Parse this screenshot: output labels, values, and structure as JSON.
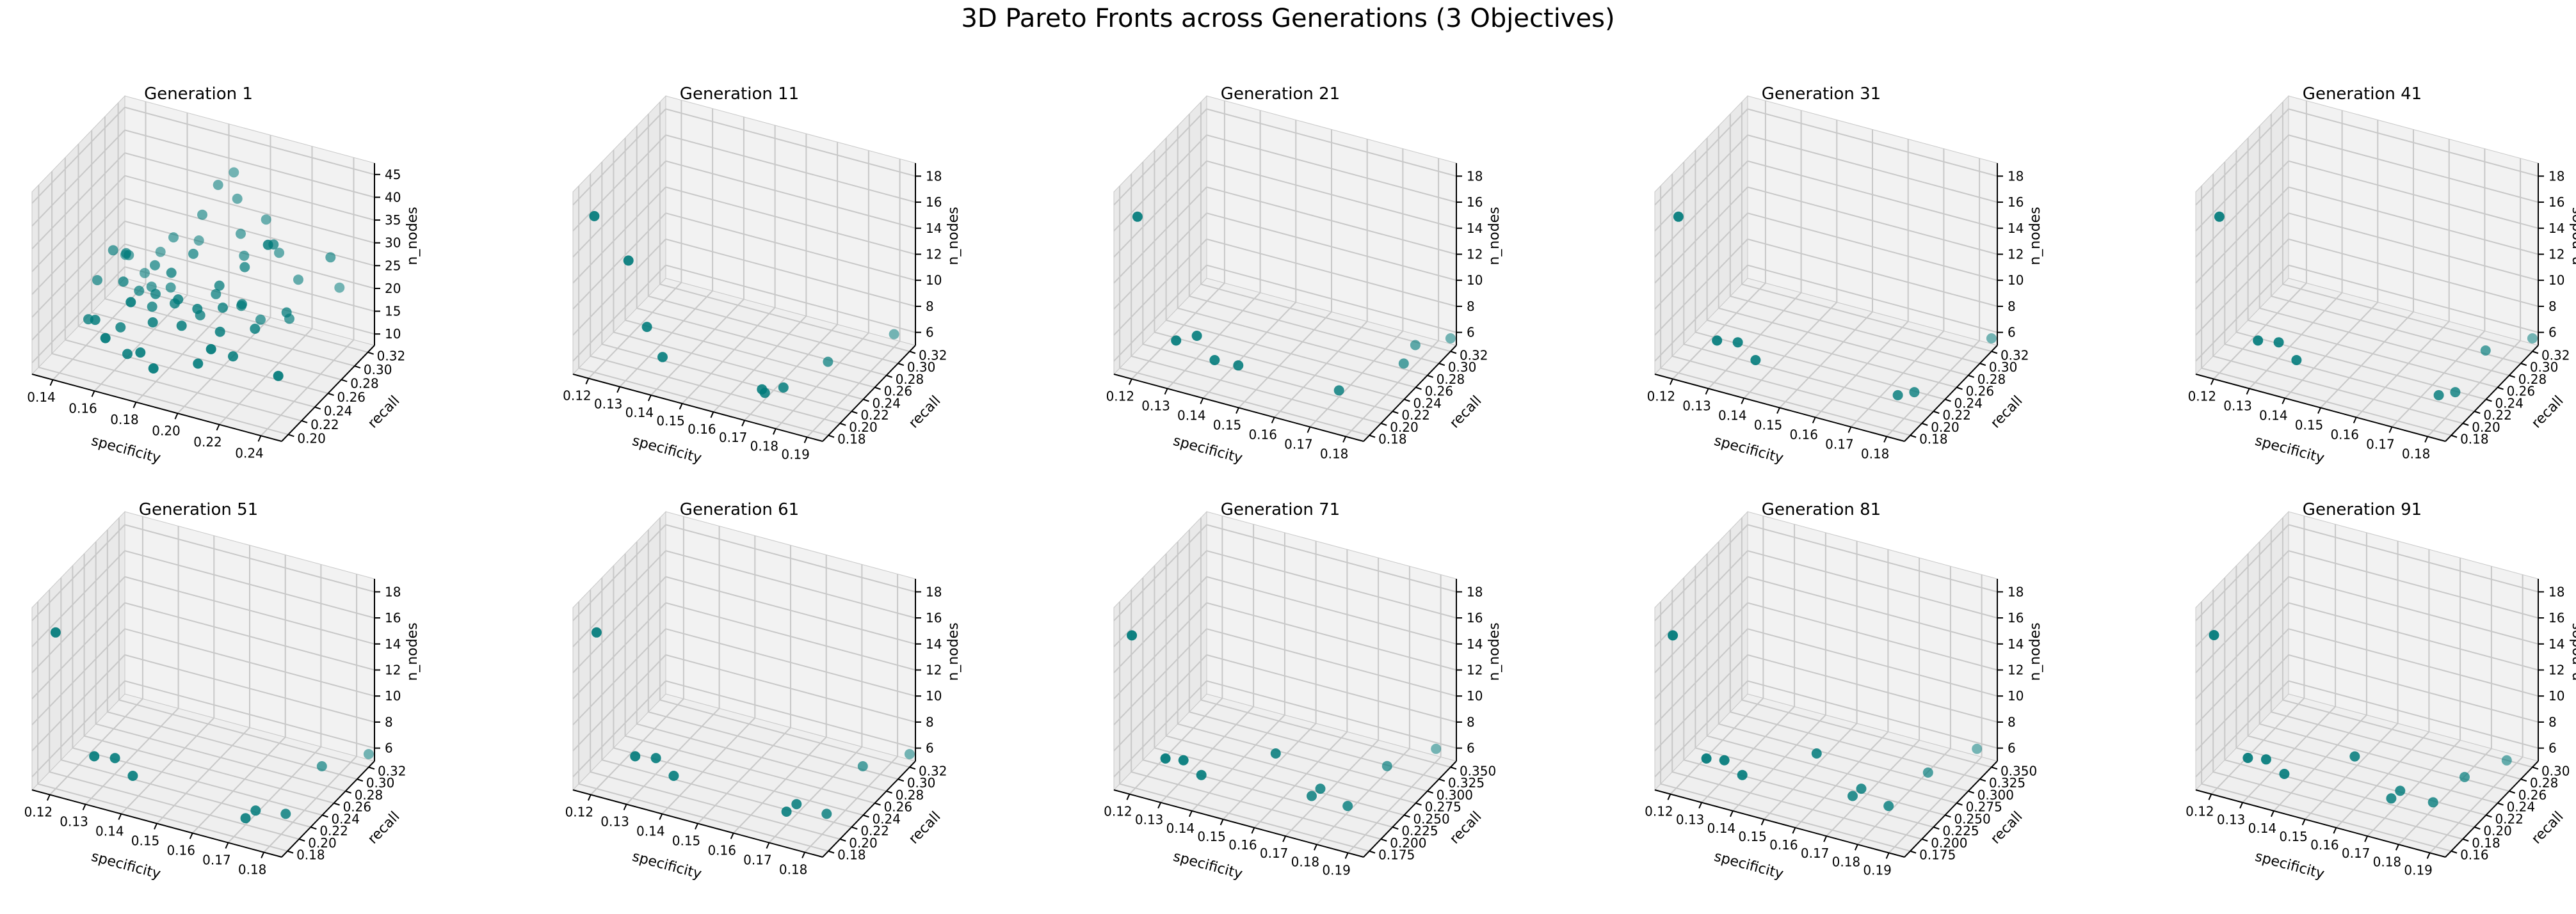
{
  "figure": {
    "title": "3D Pareto Fronts across Generations (3 Objectives)",
    "marker_color": "#007a7a"
  },
  "chart_data": [
    {
      "type": "scatter3d",
      "title": "Generation 1",
      "xlabel": "specificity",
      "ylabel": "recall",
      "zlabel": "n_nodes",
      "xlim": [
        0.12,
        0.25
      ],
      "ylim": [
        0.18,
        0.33
      ],
      "zlim": [
        5,
        47
      ],
      "xticks": [
        "0.14",
        "0.16",
        "0.18",
        "0.20",
        "0.22",
        "0.24"
      ],
      "yticks": [
        "0.20",
        "0.22",
        "0.24",
        "0.26",
        "0.28",
        "0.30",
        "0.32"
      ],
      "zticks": [
        "10",
        "15",
        "20",
        "25",
        "30",
        "35",
        "40",
        "45"
      ],
      "points": [
        [
          0.245,
          0.19,
          18
        ],
        [
          0.23,
          0.22,
          42
        ],
        [
          0.22,
          0.26,
          35
        ],
        [
          0.24,
          0.29,
          30
        ],
        [
          0.13,
          0.28,
          20
        ],
        [
          0.135,
          0.29,
          18
        ],
        [
          0.14,
          0.27,
          22
        ],
        [
          0.145,
          0.25,
          19
        ],
        [
          0.15,
          0.26,
          16
        ],
        [
          0.155,
          0.27,
          21
        ],
        [
          0.16,
          0.28,
          15
        ],
        [
          0.165,
          0.24,
          20
        ],
        [
          0.17,
          0.25,
          24
        ],
        [
          0.175,
          0.27,
          26
        ],
        [
          0.18,
          0.23,
          22
        ],
        [
          0.185,
          0.22,
          18
        ],
        [
          0.19,
          0.26,
          20
        ],
        [
          0.195,
          0.25,
          24
        ],
        [
          0.2,
          0.24,
          21
        ],
        [
          0.205,
          0.22,
          19
        ],
        [
          0.21,
          0.24,
          23
        ],
        [
          0.215,
          0.21,
          16
        ],
        [
          0.22,
          0.23,
          20
        ],
        [
          0.17,
          0.3,
          30
        ],
        [
          0.175,
          0.31,
          36
        ],
        [
          0.18,
          0.32,
          38
        ],
        [
          0.185,
          0.31,
          34
        ],
        [
          0.19,
          0.3,
          28
        ],
        [
          0.15,
          0.23,
          12
        ],
        [
          0.16,
          0.21,
          10
        ],
        [
          0.17,
          0.2,
          13
        ],
        [
          0.18,
          0.19,
          12
        ],
        [
          0.14,
          0.22,
          14
        ],
        [
          0.13,
          0.24,
          10
        ],
        [
          0.2,
          0.2,
          14
        ],
        [
          0.21,
          0.19,
          20
        ],
        [
          0.195,
          0.29,
          25
        ],
        [
          0.155,
          0.3,
          23
        ],
        [
          0.165,
          0.31,
          22
        ],
        [
          0.145,
          0.31,
          17
        ],
        [
          0.225,
          0.27,
          17
        ],
        [
          0.23,
          0.25,
          22
        ],
        [
          0.2,
          0.27,
          17
        ],
        [
          0.185,
          0.25,
          16
        ],
        [
          0.17,
          0.22,
          17
        ],
        [
          0.16,
          0.25,
          15
        ],
        [
          0.15,
          0.28,
          14
        ],
        [
          0.14,
          0.3,
          13
        ],
        [
          0.125,
          0.27,
          14
        ],
        [
          0.13,
          0.3,
          16
        ],
        [
          0.2,
          0.31,
          31
        ],
        [
          0.21,
          0.3,
          26
        ],
        [
          0.175,
          0.24,
          19
        ],
        [
          0.19,
          0.23,
          21
        ],
        [
          0.165,
          0.2,
          24
        ],
        [
          0.155,
          0.19,
          16
        ],
        [
          0.21,
          0.27,
          15
        ],
        [
          0.22,
          0.3,
          21
        ],
        [
          0.235,
          0.32,
          18
        ],
        [
          0.205,
          0.26,
          28
        ]
      ]
    },
    {
      "type": "scatter3d",
      "title": "Generation 11",
      "xlabel": "specificity",
      "ylabel": "recall",
      "zlabel": "n_nodes",
      "xlim": [
        0.115,
        0.195
      ],
      "ylim": [
        0.17,
        0.33
      ],
      "zlim": [
        5,
        19
      ],
      "xticks": [
        "0.12",
        "0.13",
        "0.14",
        "0.15",
        "0.16",
        "0.17",
        "0.18",
        "0.19"
      ],
      "yticks": [
        "0.18",
        "0.20",
        "0.22",
        "0.24",
        "0.26",
        "0.28",
        "0.30",
        "0.32"
      ],
      "zticks": [
        "6",
        "8",
        "10",
        "12",
        "14",
        "16",
        "18"
      ],
      "points": [
        [
          0.12,
          0.18,
          17
        ],
        [
          0.13,
          0.185,
          14
        ],
        [
          0.135,
          0.19,
          9
        ],
        [
          0.14,
          0.19,
          7
        ],
        [
          0.17,
          0.2,
          6
        ],
        [
          0.17,
          0.205,
          5.5
        ],
        [
          0.175,
          0.21,
          6
        ],
        [
          0.18,
          0.26,
          6
        ],
        [
          0.19,
          0.32,
          6
        ]
      ]
    },
    {
      "type": "scatter3d",
      "title": "Generation 21",
      "xlabel": "specificity",
      "ylabel": "recall",
      "zlabel": "n_nodes",
      "xlim": [
        0.115,
        0.185
      ],
      "ylim": [
        0.17,
        0.33
      ],
      "zlim": [
        5,
        19
      ],
      "xticks": [
        "0.12",
        "0.13",
        "0.14",
        "0.15",
        "0.16",
        "0.17",
        "0.18"
      ],
      "yticks": [
        "0.18",
        "0.20",
        "0.22",
        "0.24",
        "0.26",
        "0.28",
        "0.30",
        "0.32"
      ],
      "zticks": [
        "6",
        "8",
        "10",
        "12",
        "14",
        "16",
        "18"
      ],
      "points": [
        [
          0.12,
          0.18,
          17
        ],
        [
          0.13,
          0.185,
          8
        ],
        [
          0.135,
          0.19,
          8.5
        ],
        [
          0.14,
          0.19,
          7
        ],
        [
          0.145,
          0.2,
          6.5
        ],
        [
          0.17,
          0.22,
          5.5
        ],
        [
          0.18,
          0.27,
          6
        ],
        [
          0.18,
          0.29,
          6.5
        ],
        [
          0.185,
          0.32,
          6
        ]
      ]
    },
    {
      "type": "scatter3d",
      "title": "Generation 31",
      "xlabel": "specificity",
      "ylabel": "recall",
      "zlabel": "n_nodes",
      "xlim": [
        0.115,
        0.185
      ],
      "ylim": [
        0.17,
        0.33
      ],
      "zlim": [
        5,
        19
      ],
      "xticks": [
        "0.12",
        "0.13",
        "0.14",
        "0.15",
        "0.16",
        "0.17",
        "0.18"
      ],
      "yticks": [
        "0.18",
        "0.20",
        "0.22",
        "0.24",
        "0.26",
        "0.28",
        "0.30",
        "0.32"
      ],
      "zticks": [
        "6",
        "8",
        "10",
        "12",
        "14",
        "16",
        "18"
      ],
      "points": [
        [
          0.12,
          0.18,
          17
        ],
        [
          0.13,
          0.185,
          8
        ],
        [
          0.135,
          0.19,
          8
        ],
        [
          0.14,
          0.19,
          7
        ],
        [
          0.175,
          0.22,
          5.5
        ],
        [
          0.178,
          0.23,
          5.5
        ],
        [
          0.185,
          0.32,
          6
        ]
      ]
    },
    {
      "type": "scatter3d",
      "title": "Generation 41",
      "xlabel": "specificity",
      "ylabel": "recall",
      "zlabel": "n_nodes",
      "xlim": [
        0.115,
        0.185
      ],
      "ylim": [
        0.17,
        0.33
      ],
      "zlim": [
        5,
        19
      ],
      "xticks": [
        "0.12",
        "0.13",
        "0.14",
        "0.15",
        "0.16",
        "0.17",
        "0.18"
      ],
      "yticks": [
        "0.18",
        "0.20",
        "0.22",
        "0.24",
        "0.26",
        "0.28",
        "0.30",
        "0.32"
      ],
      "zticks": [
        "6",
        "8",
        "10",
        "12",
        "14",
        "16",
        "18"
      ],
      "points": [
        [
          0.12,
          0.18,
          17
        ],
        [
          0.13,
          0.185,
          8
        ],
        [
          0.135,
          0.19,
          8
        ],
        [
          0.14,
          0.19,
          7
        ],
        [
          0.175,
          0.22,
          5.5
        ],
        [
          0.178,
          0.23,
          5.5
        ],
        [
          0.18,
          0.27,
          7
        ],
        [
          0.185,
          0.32,
          6
        ]
      ]
    },
    {
      "type": "scatter3d",
      "title": "Generation 51",
      "xlabel": "specificity",
      "ylabel": "recall",
      "zlabel": "n_nodes",
      "xlim": [
        0.115,
        0.185
      ],
      "ylim": [
        0.17,
        0.33
      ],
      "zlim": [
        5,
        19
      ],
      "xticks": [
        "0.12",
        "0.13",
        "0.14",
        "0.15",
        "0.16",
        "0.17",
        "0.18"
      ],
      "yticks": [
        "0.18",
        "0.20",
        "0.22",
        "0.24",
        "0.26",
        "0.28",
        "0.30",
        "0.32"
      ],
      "zticks": [
        "6",
        "8",
        "10",
        "12",
        "14",
        "16",
        "18"
      ],
      "points": [
        [
          0.12,
          0.18,
          17
        ],
        [
          0.13,
          0.185,
          8
        ],
        [
          0.135,
          0.19,
          8
        ],
        [
          0.14,
          0.19,
          7
        ],
        [
          0.17,
          0.2,
          5.5
        ],
        [
          0.172,
          0.205,
          6
        ],
        [
          0.178,
          0.22,
          5.5
        ],
        [
          0.18,
          0.27,
          7
        ],
        [
          0.185,
          0.32,
          6
        ]
      ]
    },
    {
      "type": "scatter3d",
      "title": "Generation 61",
      "xlabel": "specificity",
      "ylabel": "recall",
      "zlabel": "n_nodes",
      "xlim": [
        0.115,
        0.185
      ],
      "ylim": [
        0.17,
        0.33
      ],
      "zlim": [
        5,
        19
      ],
      "xticks": [
        "0.12",
        "0.13",
        "0.14",
        "0.15",
        "0.16",
        "0.17",
        "0.18"
      ],
      "yticks": [
        "0.18",
        "0.20",
        "0.22",
        "0.24",
        "0.26",
        "0.28",
        "0.30",
        "0.32"
      ],
      "zticks": [
        "6",
        "8",
        "10",
        "12",
        "14",
        "16",
        "18"
      ],
      "points": [
        [
          0.12,
          0.18,
          17
        ],
        [
          0.13,
          0.185,
          8
        ],
        [
          0.135,
          0.19,
          8
        ],
        [
          0.14,
          0.19,
          7
        ],
        [
          0.17,
          0.2,
          6
        ],
        [
          0.172,
          0.205,
          6.5
        ],
        [
          0.178,
          0.22,
          5.5
        ],
        [
          0.18,
          0.27,
          7
        ],
        [
          0.185,
          0.32,
          6
        ]
      ]
    },
    {
      "type": "scatter3d",
      "title": "Generation 71",
      "xlabel": "specificity",
      "ylabel": "recall",
      "zlabel": "n_nodes",
      "xlim": [
        0.115,
        0.195
      ],
      "ylim": [
        0.165,
        0.36
      ],
      "zlim": [
        5,
        19
      ],
      "xticks": [
        "0.12",
        "0.13",
        "0.14",
        "0.15",
        "0.16",
        "0.17",
        "0.18",
        "0.19"
      ],
      "yticks": [
        "0.175",
        "0.200",
        "0.225",
        "0.250",
        "0.275",
        "0.300",
        "0.325",
        "0.350"
      ],
      "zticks": [
        "6",
        "8",
        "10",
        "12",
        "14",
        "16",
        "18"
      ],
      "points": [
        [
          0.12,
          0.17,
          17
        ],
        [
          0.13,
          0.175,
          8
        ],
        [
          0.135,
          0.18,
          8
        ],
        [
          0.14,
          0.185,
          7
        ],
        [
          0.16,
          0.21,
          9
        ],
        [
          0.17,
          0.22,
          6
        ],
        [
          0.172,
          0.225,
          6.5
        ],
        [
          0.18,
          0.23,
          5.5
        ],
        [
          0.185,
          0.28,
          7
        ],
        [
          0.19,
          0.35,
          6
        ]
      ]
    },
    {
      "type": "scatter3d",
      "title": "Generation 81",
      "xlabel": "specificity",
      "ylabel": "recall",
      "zlabel": "n_nodes",
      "xlim": [
        0.115,
        0.195
      ],
      "ylim": [
        0.165,
        0.36
      ],
      "zlim": [
        5,
        19
      ],
      "xticks": [
        "0.12",
        "0.13",
        "0.14",
        "0.15",
        "0.16",
        "0.17",
        "0.18",
        "0.19"
      ],
      "yticks": [
        "0.175",
        "0.200",
        "0.225",
        "0.250",
        "0.275",
        "0.300",
        "0.325",
        "0.350"
      ],
      "zticks": [
        "6",
        "8",
        "10",
        "12",
        "14",
        "16",
        "18"
      ],
      "points": [
        [
          0.12,
          0.17,
          17
        ],
        [
          0.13,
          0.175,
          8
        ],
        [
          0.135,
          0.18,
          8
        ],
        [
          0.14,
          0.185,
          7
        ],
        [
          0.16,
          0.21,
          9
        ],
        [
          0.17,
          0.22,
          6
        ],
        [
          0.172,
          0.225,
          6.5
        ],
        [
          0.18,
          0.23,
          5.5
        ],
        [
          0.185,
          0.28,
          6.5
        ],
        [
          0.19,
          0.35,
          6
        ]
      ]
    },
    {
      "type": "scatter3d",
      "title": "Generation 91",
      "xlabel": "specificity",
      "ylabel": "recall",
      "zlabel": "n_nodes",
      "xlim": [
        0.115,
        0.195
      ],
      "ylim": [
        0.155,
        0.33
      ],
      "zlim": [
        5,
        19
      ],
      "xticks": [
        "0.12",
        "0.13",
        "0.14",
        "0.15",
        "0.16",
        "0.17",
        "0.18",
        "0.19"
      ],
      "yticks": [
        "0.16",
        "0.18",
        "0.20",
        "0.22",
        "0.24",
        "0.26",
        "0.28",
        "0.30"
      ],
      "zticks": [
        "6",
        "8",
        "10",
        "12",
        "14",
        "16",
        "18"
      ],
      "points": [
        [
          0.12,
          0.16,
          17
        ],
        [
          0.13,
          0.165,
          8
        ],
        [
          0.135,
          0.17,
          8
        ],
        [
          0.14,
          0.175,
          7
        ],
        [
          0.16,
          0.19,
          9
        ],
        [
          0.17,
          0.2,
          6
        ],
        [
          0.172,
          0.205,
          6.5
        ],
        [
          0.18,
          0.22,
          5.5
        ],
        [
          0.185,
          0.25,
          6.5
        ],
        [
          0.19,
          0.3,
          6
        ]
      ]
    }
  ]
}
